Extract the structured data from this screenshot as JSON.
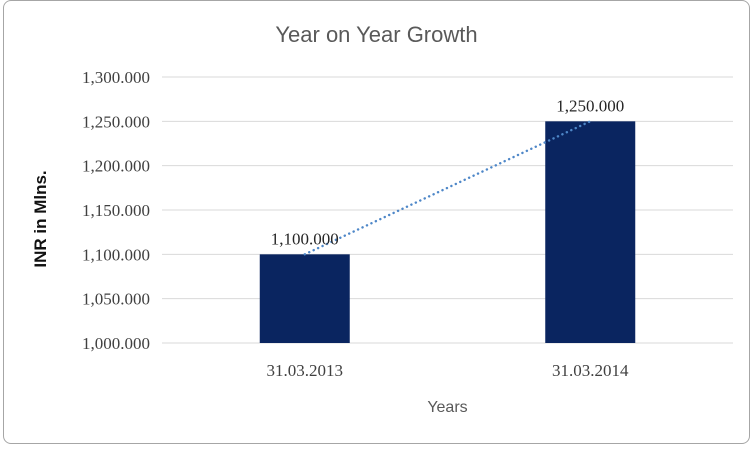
{
  "frame": {
    "border_color": "#a6a6a6",
    "background": "#ffffff"
  },
  "chart_data": {
    "type": "bar",
    "title": "Year on Year Growth",
    "xlabel": "Years",
    "ylabel": "INR in Mlns.",
    "categories": [
      "31.03.2013",
      "31.03.2014"
    ],
    "values": [
      1100,
      1250
    ],
    "data_labels": [
      "1,100.000",
      "1,250.000"
    ],
    "ylim": [
      1000,
      1300
    ],
    "yticks": [
      {
        "value": 1000,
        "label": "1,000.000"
      },
      {
        "value": 1050,
        "label": "1,050.000"
      },
      {
        "value": 1100,
        "label": "1,100.000"
      },
      {
        "value": 1150,
        "label": "1,150.000"
      },
      {
        "value": 1200,
        "label": "1,200.000"
      },
      {
        "value": 1250,
        "label": "1,250.000"
      },
      {
        "value": 1300,
        "label": "1,300.000"
      }
    ],
    "grid": true,
    "legend": "none",
    "trendline": {
      "type": "linear",
      "style": "dotted",
      "from_value": 1100,
      "to_value": 1250
    },
    "colors": {
      "bar": "#0a2560",
      "trendline": "#4e87c8",
      "gridline": "#d9d9d9",
      "title_text": "#595959",
      "tick_text": "#404040",
      "category_text": "#404040",
      "data_label_text": "#262626",
      "axis_title_text": "#595959",
      "ylabel_text": "#111111"
    }
  }
}
